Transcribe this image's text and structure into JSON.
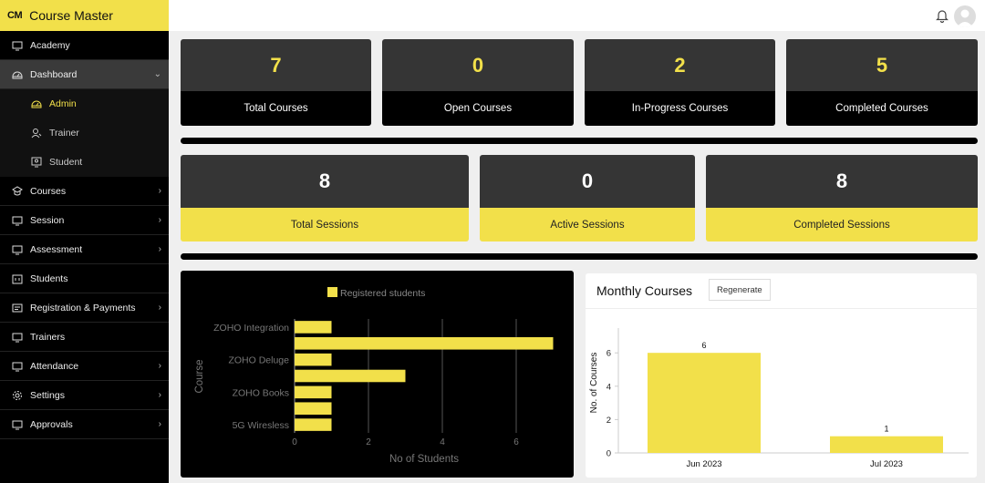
{
  "brand": {
    "logo": "CM",
    "name": "Course Master"
  },
  "sidebar": {
    "items": [
      {
        "label": "Academy",
        "icon": "monitor-icon",
        "chevron": false
      },
      {
        "label": "Dashboard",
        "icon": "dashboard-icon",
        "chevron": true,
        "expanded": true
      },
      {
        "label": "Courses",
        "icon": "courses-icon",
        "chevron": true
      },
      {
        "label": "Session",
        "icon": "monitor-icon",
        "chevron": true
      },
      {
        "label": "Assessment",
        "icon": "monitor-icon",
        "chevron": true
      },
      {
        "label": "Students",
        "icon": "building-icon",
        "chevron": false
      },
      {
        "label": "Registration & Payments",
        "icon": "register-icon",
        "chevron": true
      },
      {
        "label": "Trainers",
        "icon": "monitor-icon",
        "chevron": false
      },
      {
        "label": "Attendance",
        "icon": "monitor-icon",
        "chevron": true
      },
      {
        "label": "Settings",
        "icon": "gear-icon",
        "chevron": true
      },
      {
        "label": "Approvals",
        "icon": "monitor-icon",
        "chevron": true
      }
    ],
    "sub_items": [
      {
        "label": "Admin",
        "icon": "admin-icon",
        "selected": true
      },
      {
        "label": "Trainer",
        "icon": "trainer-icon",
        "selected": false
      },
      {
        "label": "Student",
        "icon": "student-icon",
        "selected": false
      }
    ]
  },
  "course_stats": [
    {
      "value": "7",
      "label": "Total Courses"
    },
    {
      "value": "0",
      "label": "Open Courses"
    },
    {
      "value": "2",
      "label": "In-Progress Courses"
    },
    {
      "value": "5",
      "label": "Completed Courses"
    }
  ],
  "session_stats": [
    {
      "value": "8",
      "label": "Total Sessions"
    },
    {
      "value": "0",
      "label": "Active Sessions"
    },
    {
      "value": "8",
      "label": "Completed Sessions"
    }
  ],
  "students_chart": {
    "legend": "Registered students"
  },
  "monthly_courses": {
    "title": "Monthly Courses",
    "regenerate_label": "Regenerate"
  },
  "colors": {
    "accent": "#f2e04a",
    "dark": "#353535",
    "black": "#000000"
  },
  "chart_data": [
    {
      "type": "bar",
      "orientation": "horizontal",
      "title": "",
      "xlabel": "No of Students",
      "ylabel": "Course",
      "legend": [
        "Registered students"
      ],
      "xlim": [
        0,
        7
      ],
      "xticks": [
        "0",
        "2",
        "4",
        "6"
      ],
      "categories": [
        "ZOHO Integration",
        "",
        "ZOHO Deluge",
        "",
        "ZOHO Books",
        "",
        "5G Wiresless"
      ],
      "values": [
        1,
        7,
        1,
        3,
        1,
        1,
        1
      ],
      "grid": "vertical",
      "legend_placement": "top"
    },
    {
      "type": "bar",
      "title": "Monthly Courses",
      "xlabel": "",
      "ylabel": "No. of Courses",
      "categories": [
        "Jun 2023",
        "Jul 2023"
      ],
      "values": [
        6,
        1
      ],
      "data_labels": [
        "6",
        "1"
      ],
      "ylim": [
        0,
        7
      ],
      "yticks": [
        "0",
        "2",
        "4",
        "6"
      ],
      "grid": false
    }
  ]
}
